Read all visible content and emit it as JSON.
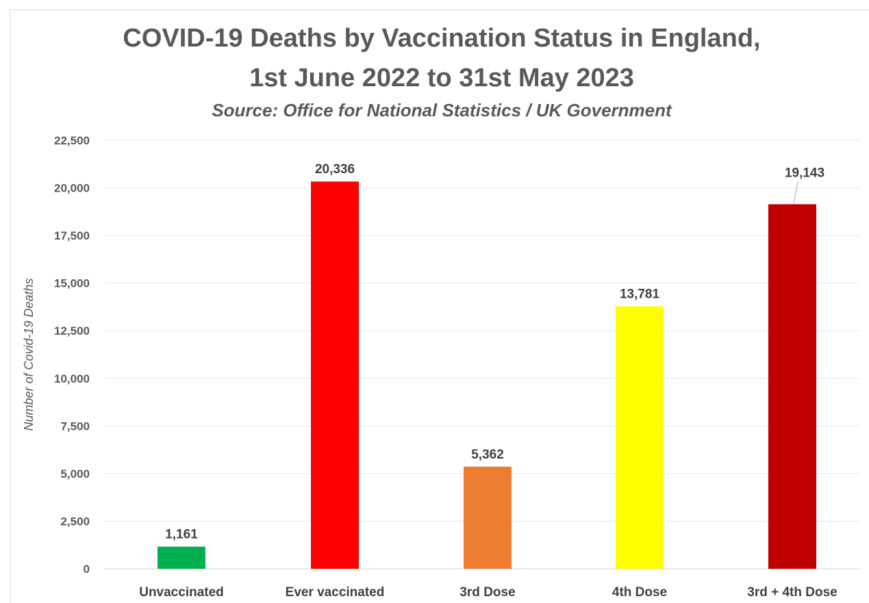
{
  "chart_data": {
    "type": "bar",
    "title_line1": "COVID-19 Deaths by Vaccination Status in England,",
    "title_line2": "1st June 2022 to 31st May 2023",
    "subtitle": "Source: Office for National Statistics / UK Government",
    "ylabel": "Number of Covid-19 Deaths",
    "xlabel": "",
    "ylim": [
      0,
      22500
    ],
    "yticks": [
      0,
      2500,
      5000,
      7500,
      10000,
      12500,
      15000,
      17500,
      20000,
      22500
    ],
    "ytick_labels": [
      "0",
      "2,500",
      "5,000",
      "7,500",
      "10,000",
      "12,500",
      "15,000",
      "17,500",
      "20,000",
      "22,500"
    ],
    "grid": true,
    "categories": [
      "Unvaccinated",
      "Ever vaccinated",
      "3rd Dose",
      "4th Dose",
      "3rd + 4th Dose"
    ],
    "values": [
      1161,
      20336,
      5362,
      13781,
      19143
    ],
    "data_labels": [
      "1,161",
      "20,336",
      "5,362",
      "13,781",
      "19,143"
    ],
    "colors": [
      "#00b050",
      "#ff0000",
      "#ed7d31",
      "#ffff00",
      "#c00000"
    ]
  }
}
